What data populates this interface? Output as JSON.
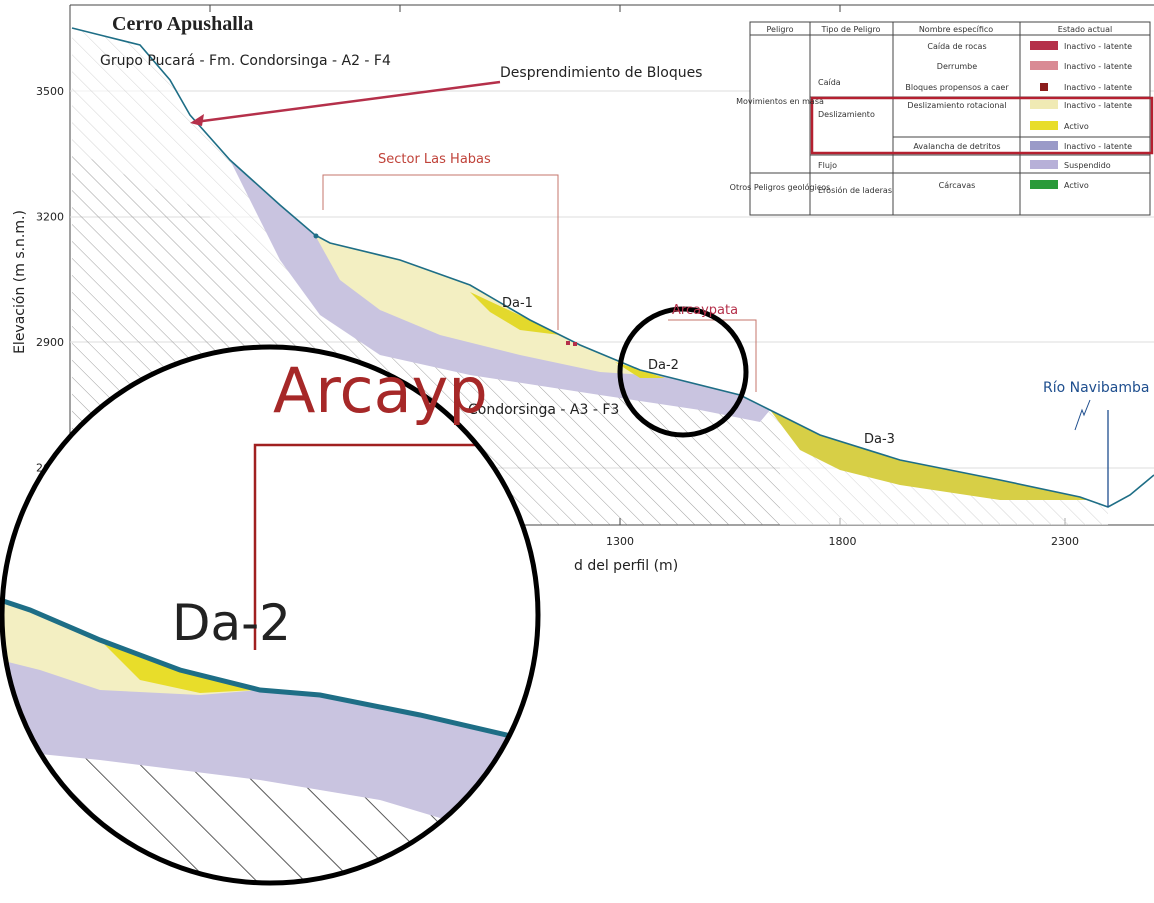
{
  "title": "Cerro Apushalla",
  "formations": [
    "Grupo Pucará - Fm. Condorsinga - A2 - F4",
    "Condorsinga - A3 - F3"
  ],
  "annotations": {
    "block_fall": "Desprendimiento de Bloques",
    "sector": "Sector Las Habas",
    "site": "Arcaypata",
    "da1": "Da-1",
    "da2": "Da-2",
    "da3": "Da-3",
    "river": "Río Navibamba"
  },
  "axes": {
    "y_label": "Elevación (m s.n.m.)",
    "y_ticks": [
      3500,
      3200,
      2900,
      2600
    ],
    "x_label": "d del perfil (m)",
    "x_ticks": [
      1300,
      1800,
      2300
    ]
  },
  "legend": {
    "header": [
      "Peligro",
      "Tipo de Peligro",
      "Nombre específico",
      "Estado actual"
    ],
    "peligro": [
      "Movimientos en masa",
      "Otros Peligros geológicos"
    ],
    "tipo": [
      "Caída",
      "Deslizamiento",
      "Flujo",
      "Erosión de laderas"
    ],
    "items": [
      {
        "nombre": "Caída de rocas",
        "estado": "Inactivo - latente",
        "color": "#b5304a"
      },
      {
        "nombre": "Derrumbe",
        "estado": "Inactivo - latente",
        "color": "#d98a94"
      },
      {
        "nombre": "Bloques propensos a caer",
        "estado": "Inactivo - latente",
        "color": "#8b1c1c"
      },
      {
        "nombre": "Deslizamiento rotacional",
        "estado": "Inactivo - latente",
        "color": "#f0eab4"
      },
      {
        "estado": "Activo",
        "color": "#e8dd2a"
      },
      {
        "nombre": "Avalancha de detritos",
        "estado": "Inactivo - latente",
        "color": "#9a9ac8"
      },
      {
        "estado": "Suspendido",
        "color": "#b7b0d8"
      },
      {
        "nombre": "Cárcavas",
        "estado": "Activo",
        "color": "#2a9a3a"
      }
    ]
  },
  "inset": {
    "site": "Arcayp",
    "label": "Da-2"
  }
}
